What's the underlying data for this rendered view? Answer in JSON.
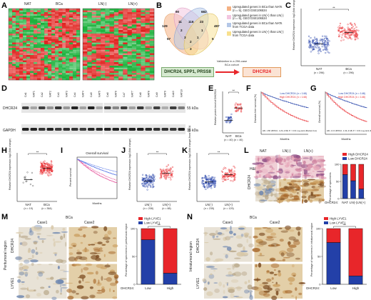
{
  "panels": {
    "A": {
      "label": "A",
      "left_groups": [
        "NAT",
        "BCa"
      ],
      "right_groups": [
        "LN(-)",
        "LN(+)"
      ]
    },
    "B": {
      "label": "B",
      "venn_numbers": [
        "90",
        "682",
        "129",
        "11",
        "116",
        "23",
        "497",
        "2",
        "1",
        "57",
        "3",
        "1",
        "5",
        "2",
        "3"
      ],
      "legend": [
        {
          "text": "Upregulated genes in BCa than NATs (n = 5), GEO:GSE106534",
          "color": "#f4b183"
        },
        {
          "text": "Upregulated genes in LN(+) than LN(-) (n = 5), GEO:GSE106534",
          "color": "#f3c6e0"
        },
        {
          "text": "Upregulated genes in BCa than NATs from TCGA data",
          "color": "#b4c7e7"
        },
        {
          "text": "Upregulated genes in LN(+) than LN(-) from TCGA data",
          "color": "#f8e08e"
        }
      ],
      "result_genes": "DHCR24,  SPP1,  PRSS8",
      "validation_text": "Validation in a 296-case BCa cohort",
      "final_gene": "DHCR24"
    },
    "C": {
      "label": "C",
      "ylabel": "Relative DHCR24 expression log2 (fold change)",
      "groups": [
        "NAT",
        "BCa"
      ],
      "ns": [
        "(n = 296)",
        "(n = 296)"
      ],
      "sig": "**"
    },
    "D": {
      "label": "D",
      "lanes": [
        "Ca1",
        "NAT1",
        "Ca2",
        "NAT2",
        "Ca3",
        "NAT3",
        "Ca4",
        "NAT4",
        "Ca5",
        "NAT5",
        "Ca6",
        "NAT6",
        "Ca7",
        "NAT7",
        "Ca8",
        "NAT8",
        "Ca9",
        "NAT9",
        "Ca10",
        "NAT10"
      ],
      "proteins": [
        "DHCR24",
        "GAPDH"
      ],
      "sizes": [
        "55 kDa",
        "35 kDa"
      ]
    },
    "E": {
      "label": "E",
      "ylabel": "Relative protein level of DHCR24",
      "groups": [
        "NAT",
        "BCa"
      ],
      "ns": [
        "(n = 40)",
        "(n = 40)"
      ],
      "sig": "**"
    },
    "F": {
      "label": "F",
      "legend": [
        "Low DHCR24 (n = 148)",
        "High DHCR24 (n = 148)"
      ],
      "ylabel": "Disease-free survival (%)",
      "xlabel": "Months",
      "stat": "HR, 1.86 (95%CI, 1.23~2.84)  P < 0.01 Log-rank (Mantel-Cox)"
    },
    "G": {
      "label": "G",
      "legend": [
        "Low DHCR24 (n = 148)",
        "High DHCR24 (n = 148)"
      ],
      "ylabel": "Overall survival (%)",
      "xlabel": "Months",
      "stat": "HR, 2.13 (95%CI, 1.43~3.18)  P < 0.01 Log-rank (Mantel-Cox)"
    },
    "H": {
      "label": "H",
      "ylabel": "Relative DHCR24 expression log2 (fold change)",
      "groups": [
        "NAT",
        "BCa"
      ],
      "ns": [
        "(n = 19)",
        "(n = 364)"
      ],
      "sig": "**"
    },
    "I": {
      "label": "I",
      "title": "Overall survival",
      "xlabel": "Months",
      "ylabel": "Percent survival"
    },
    "J": {
      "label": "J",
      "ylabel": "Relative DHCR24 expression log2 (fold change)",
      "groups": [
        "LN(-)",
        "LN(+)"
      ],
      "ns": [
        "(n = 208)",
        "(n = 88)"
      ],
      "sig": "**"
    },
    "K": {
      "label": "K",
      "ylabel": "Relative DHCR24 expression log2 (fold change) from TCGA",
      "groups": [
        "LN(-)",
        "LN(+)"
      ],
      "ns": [
        "(n = 235)",
        "(n = 129)"
      ],
      "sig": "**"
    },
    "L": {
      "label": "L",
      "cols": [
        "NAT",
        "LN(-)",
        "LN(+)"
      ],
      "rows": [
        "H&E",
        "DHCR24"
      ],
      "legend": [
        "High DHCR24",
        "Low DHCR24"
      ],
      "ylabel": "Percentage of specimens",
      "xcats": [
        "NAT",
        "LN(-)",
        "LN(+)"
      ],
      "xlabel": "DHCR24:"
    },
    "M": {
      "label": "M",
      "header": "BCa",
      "cases": [
        "Case1",
        "Case2"
      ],
      "region": "Peritumoral region",
      "rows": [
        "DHCR24",
        "LYVE1"
      ],
      "legend": [
        "High LYVE1",
        "Low LYVE1"
      ],
      "ylabel": "Percentage of specimens in peritumoral region",
      "xcats": [
        "Low",
        "High"
      ],
      "xlabel": "DHCR24:",
      "sig": "**"
    },
    "N": {
      "label": "N",
      "header": "BCa",
      "cases": [
        "Case1",
        "Case2"
      ],
      "region": "Intratumoral region",
      "rows": [
        "DHCR24",
        "LYVE1"
      ],
      "legend": [
        "High LYVE1",
        "Low LYVE1"
      ],
      "ylabel": "Percentage of specimens in intratumoral region",
      "xcats": [
        "Low",
        "High"
      ],
      "xlabel": "DHCR24:",
      "sig": "**"
    }
  },
  "chart_data": [
    {
      "type": "bar",
      "panel": "L",
      "categories": [
        "NAT",
        "LN(-)",
        "LN(+)"
      ],
      "series": [
        {
          "name": "High DHCR24",
          "values": [
            30,
            48,
            72
          ]
        },
        {
          "name": "Low DHCR24",
          "values": [
            70,
            52,
            28
          ]
        }
      ],
      "ylim": [
        0,
        100
      ]
    },
    {
      "type": "bar",
      "panel": "M",
      "categories": [
        "Low",
        "High"
      ],
      "series": [
        {
          "name": "High LYVE1",
          "values": [
            20,
            80
          ]
        },
        {
          "name": "Low LYVE1",
          "values": [
            80,
            20
          ]
        }
      ],
      "ylim": [
        0,
        100
      ]
    },
    {
      "type": "bar",
      "panel": "N",
      "categories": [
        "Low",
        "High"
      ],
      "series": [
        {
          "name": "High LYVE1",
          "values": [
            25,
            85
          ]
        },
        {
          "name": "Low LYVE1",
          "values": [
            75,
            15
          ]
        }
      ],
      "ylim": [
        0,
        100
      ]
    }
  ],
  "colors": {
    "red": "#e8262a",
    "blue": "#2340a8",
    "green": "#1a9a3a",
    "heat_red": "#e0201c",
    "heat_green": "#19b13a"
  }
}
